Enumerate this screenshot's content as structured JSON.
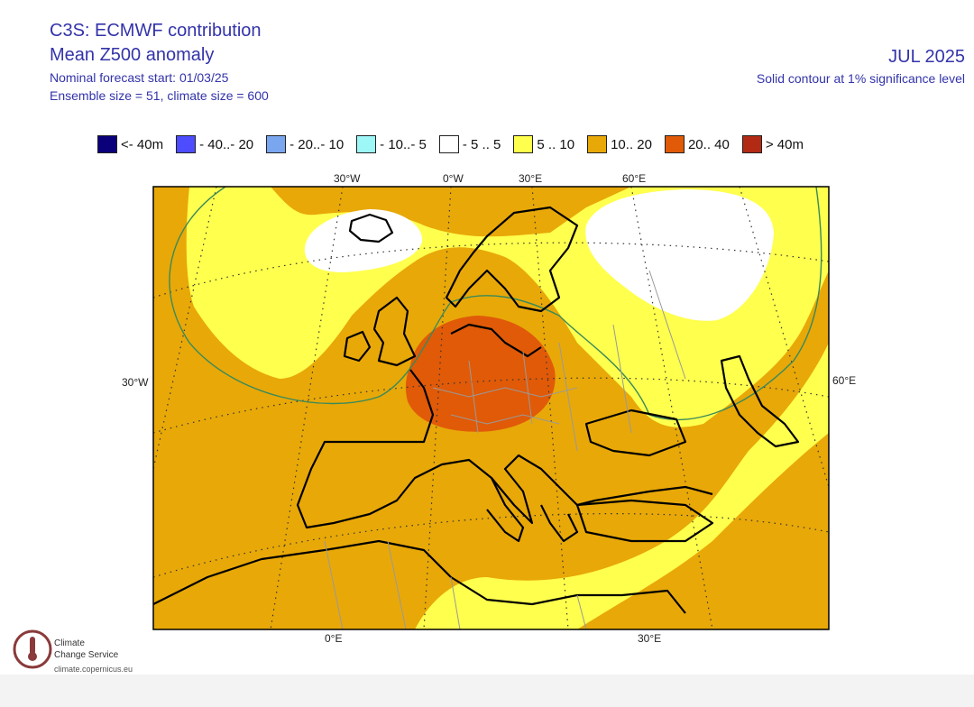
{
  "header": {
    "line1": "C3S: ECMWF contribution",
    "line2": "Mean Z500 anomaly",
    "line3": "Nominal forecast start: 01/03/25",
    "line4": "Ensemble size = 51, climate size = 600",
    "month": "JUL 2025",
    "significance": "Solid contour at 1% significance level"
  },
  "legend": [
    {
      "label": "<- 40m",
      "color": "#0a007a"
    },
    {
      "label": "- 40..- 20",
      "color": "#4d4dff"
    },
    {
      "label": "- 20..- 10",
      "color": "#7aa6f0"
    },
    {
      "label": "- 10..- 5",
      "color": "#9ef7f7"
    },
    {
      "label": "- 5 .. 5",
      "color": "#ffffff"
    },
    {
      "label": "5 .. 10",
      "color": "#ffff4d"
    },
    {
      "label": "10.. 20",
      "color": "#e8a808"
    },
    {
      "label": "20.. 40",
      "color": "#e05a08"
    },
    {
      "label": "> 40m",
      "color": "#b22a14"
    }
  ],
  "lon_labels_top": [
    "30°W",
    "0°W",
    "30°E",
    "60°E"
  ],
  "lon_labels_bottom": [
    "0°E",
    "30°E"
  ],
  "side_labels": {
    "left": "30°W",
    "right": "60°E"
  },
  "logo": {
    "name_line1": "Climate",
    "name_line2": "Change Service",
    "url": "climate.copernicus.eu",
    "icon": "thermometer-cloud-icon"
  }
}
